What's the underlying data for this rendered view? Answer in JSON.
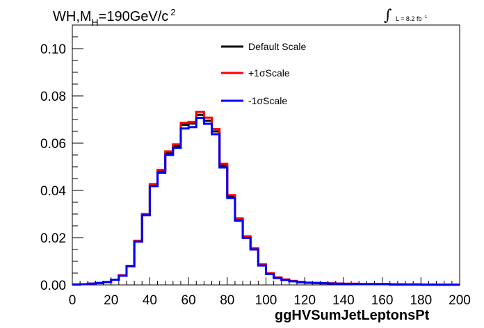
{
  "title": {
    "prefix": "WH,M",
    "sub": "H",
    "mid": "=190GeV/c",
    "sup": "2"
  },
  "lumi": {
    "integral_symbol": "∫",
    "text": "L = 8.2 fb",
    "sup": "-1"
  },
  "chart_data": {
    "type": "line",
    "style": "step histogram",
    "xlabel": "ggHVSumJetLeptonsPt",
    "ylabel": "",
    "xlim": [
      0,
      200
    ],
    "ylim": [
      0,
      0.11
    ],
    "xticks": [
      0,
      20,
      40,
      60,
      80,
      100,
      120,
      140,
      160,
      180,
      200
    ],
    "yticks": [
      "0.00",
      "0.02",
      "0.04",
      "0.06",
      "0.08",
      "0.10"
    ],
    "bin_edges": [
      0,
      4,
      8,
      12,
      16,
      20,
      24,
      28,
      32,
      36,
      40,
      44,
      48,
      52,
      56,
      60,
      64,
      68,
      72,
      76,
      80,
      84,
      88,
      92,
      96,
      100,
      104,
      108,
      112,
      116,
      120,
      124,
      128,
      132,
      136,
      140,
      144,
      148,
      152,
      156,
      160,
      164,
      168,
      172,
      176,
      180,
      184,
      188,
      192,
      196,
      200
    ],
    "legend_position": "top-center",
    "series": [
      {
        "name": "Default Scale",
        "color": "#000000",
        "values": [
          0.0002,
          0.0003,
          0.0005,
          0.0008,
          0.0012,
          0.0022,
          0.004,
          0.008,
          0.0185,
          0.0298,
          0.0422,
          0.0482,
          0.0558,
          0.0588,
          0.0678,
          0.0683,
          0.072,
          0.0695,
          0.065,
          0.0505,
          0.0375,
          0.0278,
          0.0203,
          0.0153,
          0.0085,
          0.0048,
          0.003,
          0.0022,
          0.0016,
          0.0012,
          0.0009,
          0.0008,
          0.0007,
          0.0006,
          0.0005,
          0.0004,
          0.0004,
          0.0003,
          0.0003,
          0.0003,
          0.0003,
          0.0002,
          0.0002,
          0.0002,
          0.0002,
          0.0001,
          0.0001,
          0.0001,
          0.0001,
          0.0001
        ]
      },
      {
        "name": "+1σScale",
        "color": "#ff0000",
        "values": [
          0.0002,
          0.0003,
          0.0005,
          0.0008,
          0.0012,
          0.0022,
          0.0041,
          0.0081,
          0.0187,
          0.03,
          0.0427,
          0.0487,
          0.0565,
          0.0595,
          0.0686,
          0.069,
          0.0732,
          0.0708,
          0.066,
          0.0513,
          0.038,
          0.0282,
          0.0206,
          0.0155,
          0.0087,
          0.005,
          0.0032,
          0.0023,
          0.0017,
          0.0013,
          0.001,
          0.0009,
          0.0008,
          0.0007,
          0.0006,
          0.0005,
          0.0005,
          0.0004,
          0.0004,
          0.0004,
          0.0004,
          0.0003,
          0.0003,
          0.0002,
          0.0002,
          0.0002,
          0.0002,
          0.0001,
          0.0001,
          0.0001
        ]
      },
      {
        "name": "-1σScale",
        "color": "#0000ff",
        "values": [
          0.0002,
          0.0003,
          0.0005,
          0.0008,
          0.0012,
          0.0022,
          0.0039,
          0.0079,
          0.0183,
          0.0295,
          0.0418,
          0.0475,
          0.055,
          0.058,
          0.0662,
          0.0668,
          0.0707,
          0.0682,
          0.0638,
          0.0497,
          0.0368,
          0.0272,
          0.0199,
          0.015,
          0.0082,
          0.0046,
          0.0029,
          0.0021,
          0.0015,
          0.0011,
          0.0009,
          0.0008,
          0.0007,
          0.0006,
          0.0005,
          0.0004,
          0.0004,
          0.0003,
          0.0003,
          0.0003,
          0.0003,
          0.0002,
          0.0002,
          0.0002,
          0.0002,
          0.0001,
          0.0001,
          0.0001,
          0.0001,
          0.0001
        ]
      }
    ]
  }
}
